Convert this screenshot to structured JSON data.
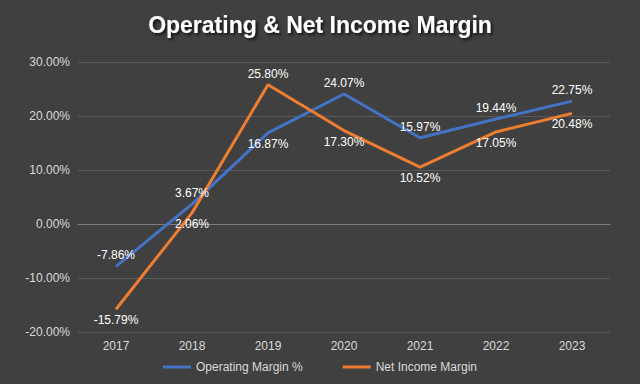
{
  "chart_data": {
    "type": "line",
    "title": "Operating & Net Income Margin",
    "categories": [
      "2017",
      "2018",
      "2019",
      "2020",
      "2021",
      "2022",
      "2023"
    ],
    "series": [
      {
        "name": "Operating Margin %",
        "color": "#4472c4",
        "values": [
          -7.86,
          3.67,
          16.87,
          24.07,
          15.97,
          19.44,
          22.75
        ],
        "value_labels": [
          "-7.86%",
          "3.67%",
          "16.87%",
          "24.07%",
          "15.97%",
          "19.44%",
          "22.75%"
        ]
      },
      {
        "name": "Net Income Margin",
        "color": "#ed7d31",
        "values": [
          -15.79,
          2.06,
          25.8,
          17.3,
          10.52,
          17.05,
          20.48
        ],
        "value_labels": [
          "-15.79%",
          "2.06%",
          "25.80%",
          "17.30%",
          "10.52%",
          "17.05%",
          "20.48%"
        ]
      }
    ],
    "ylim": [
      -20,
      30
    ],
    "yticks": [
      {
        "value": -20,
        "label": "-20.00%"
      },
      {
        "value": -10,
        "label": "-10.00%"
      },
      {
        "value": 0,
        "label": "0.00%"
      },
      {
        "value": 10,
        "label": "10.00%"
      },
      {
        "value": 20,
        "label": "20.00%"
      },
      {
        "value": 30,
        "label": "30.00%"
      }
    ],
    "grid": true,
    "legend": "bottom",
    "data_labels": true
  }
}
